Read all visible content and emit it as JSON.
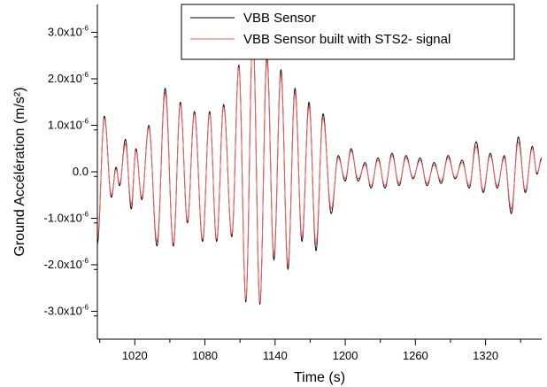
{
  "chart_data": {
    "type": "line",
    "title": "",
    "xlabel": "Time (s)",
    "ylabel": "Ground Accélération (m/s²)",
    "xlim": [
      988,
      1368
    ],
    "ylim": [
      -3.6,
      3.6
    ],
    "y_unit_exponent": -6,
    "x_ticks": [
      1020,
      1080,
      1140,
      1200,
      1260,
      1320
    ],
    "x_tick_labels": [
      "1020",
      "1080",
      "1140",
      "1200",
      "1260",
      "1320"
    ],
    "y_ticks": [
      -3,
      -2,
      -1,
      0,
      1,
      2,
      3
    ],
    "y_tick_labels": [
      {
        "mantissa": "-3.0x10",
        "exp": "-6"
      },
      {
        "mantissa": "-2.0x10",
        "exp": "-6"
      },
      {
        "mantissa": "-1.0x10",
        "exp": "-6"
      },
      {
        "mantissa": "0.0",
        "exp": ""
      },
      {
        "mantissa": "1.0x10",
        "exp": "-6"
      },
      {
        "mantissa": "2.0x10",
        "exp": "-6"
      },
      {
        "mantissa": "3.0x10",
        "exp": "-6"
      }
    ],
    "grid": false,
    "legend_position": "top-right",
    "series": [
      {
        "name": "VBB Sensor",
        "color": "#000000",
        "extrema": [
          [
            988,
            -1.55
          ],
          [
            994,
            1.2
          ],
          [
            1000,
            -0.55
          ],
          [
            1004,
            0.1
          ],
          [
            1007,
            -0.3
          ],
          [
            1012,
            0.7
          ],
          [
            1017,
            -0.8
          ],
          [
            1021,
            0.5
          ],
          [
            1026,
            -0.6
          ],
          [
            1032,
            1.0
          ],
          [
            1039,
            -1.6
          ],
          [
            1046,
            1.8
          ],
          [
            1053,
            -1.6
          ],
          [
            1059,
            1.5
          ],
          [
            1065,
            -1.1
          ],
          [
            1071,
            1.3
          ],
          [
            1078,
            -1.5
          ],
          [
            1084,
            1.3
          ],
          [
            1090,
            -1.5
          ],
          [
            1096,
            1.45
          ],
          [
            1103,
            -1.4
          ],
          [
            1109,
            2.3
          ],
          [
            1115,
            -2.8
          ],
          [
            1121,
            3.0
          ],
          [
            1127,
            -2.85
          ],
          [
            1133,
            2.5
          ],
          [
            1139,
            -1.9
          ],
          [
            1145,
            2.2
          ],
          [
            1151,
            -2.1
          ],
          [
            1157,
            1.8
          ],
          [
            1163,
            -1.5
          ],
          [
            1169,
            1.5
          ],
          [
            1175,
            -1.7
          ],
          [
            1181,
            1.25
          ],
          [
            1188,
            -0.9
          ],
          [
            1194,
            0.35
          ],
          [
            1200,
            -0.2
          ],
          [
            1205,
            0.5
          ],
          [
            1211,
            -0.2
          ],
          [
            1217,
            0.2
          ],
          [
            1222,
            -0.35
          ],
          [
            1228,
            0.3
          ],
          [
            1234,
            -0.35
          ],
          [
            1240,
            0.4
          ],
          [
            1246,
            -0.3
          ],
          [
            1252,
            0.35
          ],
          [
            1258,
            -0.15
          ],
          [
            1264,
            0.3
          ],
          [
            1270,
            -0.3
          ],
          [
            1276,
            0.2
          ],
          [
            1282,
            -0.25
          ],
          [
            1288,
            0.35
          ],
          [
            1294,
            -0.15
          ],
          [
            1300,
            0.25
          ],
          [
            1306,
            -0.35
          ],
          [
            1312,
            0.65
          ],
          [
            1318,
            -0.45
          ],
          [
            1324,
            0.4
          ],
          [
            1330,
            -0.35
          ],
          [
            1336,
            0.35
          ],
          [
            1342,
            -0.9
          ],
          [
            1348,
            0.75
          ],
          [
            1354,
            -0.45
          ],
          [
            1360,
            0.55
          ],
          [
            1364,
            -0.05
          ],
          [
            1368,
            0.3
          ]
        ]
      },
      {
        "name": "VBB Sensor built with STS2- signal",
        "color": "#ff5a5a",
        "extrema": [
          [
            988,
            -1.45
          ],
          [
            994,
            1.15
          ],
          [
            1000,
            -0.5
          ],
          [
            1004,
            0.05
          ],
          [
            1007,
            -0.25
          ],
          [
            1012,
            0.6
          ],
          [
            1017,
            -0.7
          ],
          [
            1021,
            0.45
          ],
          [
            1026,
            -0.55
          ],
          [
            1032,
            0.95
          ],
          [
            1039,
            -1.5
          ],
          [
            1046,
            1.7
          ],
          [
            1053,
            -1.55
          ],
          [
            1059,
            1.45
          ],
          [
            1065,
            -1.05
          ],
          [
            1071,
            1.25
          ],
          [
            1078,
            -1.45
          ],
          [
            1084,
            1.25
          ],
          [
            1090,
            -1.45
          ],
          [
            1096,
            1.4
          ],
          [
            1103,
            -1.35
          ],
          [
            1109,
            2.25
          ],
          [
            1115,
            -2.75
          ],
          [
            1121,
            2.95
          ],
          [
            1127,
            -2.8
          ],
          [
            1133,
            2.4
          ],
          [
            1139,
            -1.8
          ],
          [
            1145,
            2.1
          ],
          [
            1151,
            -2.0
          ],
          [
            1157,
            1.7
          ],
          [
            1163,
            -1.4
          ],
          [
            1169,
            1.4
          ],
          [
            1175,
            -1.55
          ],
          [
            1181,
            1.15
          ],
          [
            1188,
            -0.8
          ],
          [
            1194,
            0.3
          ],
          [
            1200,
            -0.15
          ],
          [
            1205,
            0.45
          ],
          [
            1211,
            -0.15
          ],
          [
            1217,
            0.15
          ],
          [
            1222,
            -0.3
          ],
          [
            1228,
            0.25
          ],
          [
            1234,
            -0.3
          ],
          [
            1240,
            0.35
          ],
          [
            1246,
            -0.25
          ],
          [
            1252,
            0.3
          ],
          [
            1258,
            -0.12
          ],
          [
            1264,
            0.25
          ],
          [
            1270,
            -0.25
          ],
          [
            1276,
            0.15
          ],
          [
            1282,
            -0.2
          ],
          [
            1288,
            0.3
          ],
          [
            1294,
            -0.12
          ],
          [
            1300,
            0.2
          ],
          [
            1306,
            -0.3
          ],
          [
            1312,
            0.55
          ],
          [
            1318,
            -0.4
          ],
          [
            1324,
            0.35
          ],
          [
            1330,
            -0.3
          ],
          [
            1336,
            0.3
          ],
          [
            1342,
            -0.8
          ],
          [
            1348,
            0.65
          ],
          [
            1354,
            -0.4
          ],
          [
            1360,
            0.5
          ],
          [
            1364,
            -0.02
          ],
          [
            1368,
            0.25
          ]
        ]
      }
    ]
  }
}
